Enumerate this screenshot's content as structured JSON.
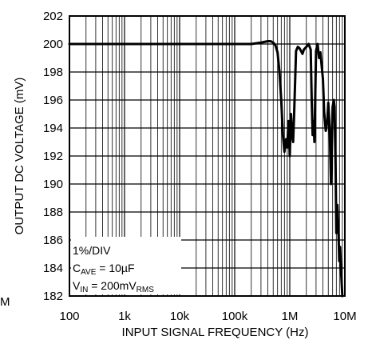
{
  "chart_data": {
    "type": "line",
    "title": "",
    "xlabel": "INPUT SIGNAL FREQUENCY (Hz)",
    "ylabel": "OUTPUT DC VOLTAGE (mV)",
    "x_scale": "log",
    "xlim": [
      100,
      10000000
    ],
    "ylim": [
      182,
      202
    ],
    "grid": true,
    "x_ticks": [
      100,
      1000,
      10000,
      100000,
      1000000,
      10000000
    ],
    "x_tick_labels": [
      "100",
      "1k",
      "10k",
      "100k",
      "1M",
      "10M"
    ],
    "y_ticks": [
      182,
      184,
      186,
      188,
      190,
      192,
      194,
      196,
      198,
      200,
      202
    ],
    "y_tick_labels": [
      "182",
      "184",
      "186",
      "188",
      "190",
      "192",
      "194",
      "196",
      "198",
      "200",
      "202"
    ],
    "left_edge_fragment": "M",
    "annotation": {
      "line1": "1%/DIV",
      "line2_main": "C",
      "line2_sub": "AVE",
      "line2_rest": " = 10µF",
      "line3_main": "V",
      "line3_sub": "IN",
      "line3_mid": " = 200mV",
      "line3_sub2": "RMS"
    },
    "series": [
      {
        "x": [
          100,
          1000,
          10000,
          100000,
          200000,
          300000,
          400000,
          450000,
          500000,
          550000,
          600000,
          650000,
          700000,
          750000,
          800000,
          850000,
          900000,
          950000,
          1000000,
          1050000,
          1100000,
          1150000,
          1200000,
          1300000,
          1400000,
          1500000,
          1600000,
          1700000,
          1800000,
          2000000,
          2200000,
          2400000,
          2500000,
          2600000,
          2700000,
          2800000,
          3000000,
          3200000,
          3400000,
          3600000,
          3800000,
          4000000,
          4200000,
          4500000,
          4800000,
          5000000,
          5300000,
          5600000,
          6000000,
          6300000,
          6500000,
          6800000,
          7000000,
          7300000,
          7600000,
          7900000,
          8200000,
          8600000,
          9000000
        ],
        "y": [
          200,
          200,
          200,
          200,
          200,
          200.1,
          200.2,
          200.2,
          200.1,
          199.9,
          199.4,
          198,
          196,
          193.5,
          192.3,
          193.2,
          192.6,
          194.5,
          192,
          195,
          193.5,
          193,
          195,
          199.5,
          199.8,
          199.7,
          199.5,
          199.3,
          199.6,
          199.8,
          200,
          199.6,
          196,
          193.5,
          194.5,
          193,
          199.5,
          200,
          199,
          199.4,
          198.4,
          197.5,
          195.2,
          193.8,
          194.5,
          195.8,
          194,
          190,
          195.5,
          196,
          195.5,
          191,
          186.5,
          188.5,
          187,
          184.5,
          185.5,
          183.5,
          182
        ]
      }
    ]
  }
}
